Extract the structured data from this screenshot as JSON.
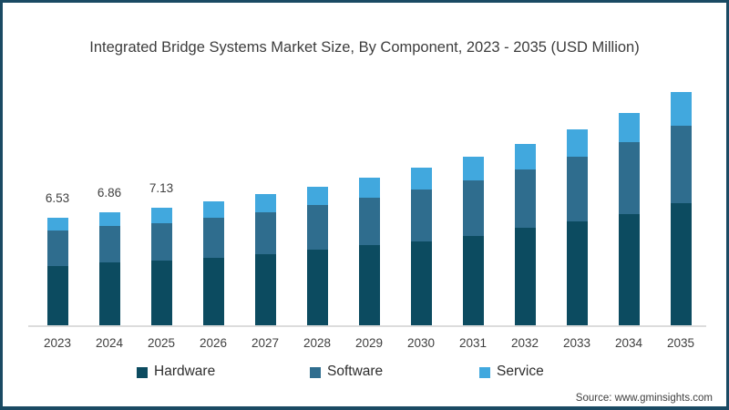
{
  "title": "Integrated Bridge Systems Market Size, By Component, 2023 - 2035 (USD Million)",
  "source": "Source: www.gminsights.com",
  "frame_border_color": "#1a4a63",
  "chart_data": {
    "type": "bar",
    "stacked": true,
    "title": "Integrated Bridge Systems Market Size, By Component, 2023 - 2035 (USD Million)",
    "xlabel": "",
    "ylabel": "USD Million",
    "ylim": [
      0,
      15
    ],
    "grid": false,
    "legend_position": "bottom",
    "axis_line_color": "#dcdcdc",
    "categories": [
      "2023",
      "2024",
      "2025",
      "2026",
      "2027",
      "2028",
      "2029",
      "2030",
      "2031",
      "2032",
      "2033",
      "2034",
      "2035"
    ],
    "series": [
      {
        "name": "Hardware",
        "color": "#0c4b60",
        "values": [
          3.64,
          3.85,
          3.96,
          4.13,
          4.35,
          4.59,
          4.87,
          5.09,
          5.45,
          5.93,
          6.29,
          6.73,
          7.42
        ]
      },
      {
        "name": "Software",
        "color": "#2f6d8e",
        "values": [
          2.14,
          2.16,
          2.24,
          2.41,
          2.52,
          2.7,
          2.87,
          3.16,
          3.31,
          3.51,
          3.91,
          4.33,
          4.66
        ]
      },
      {
        "name": "Service",
        "color": "#41a8de",
        "values": [
          0.75,
          0.85,
          0.93,
          0.95,
          1.08,
          1.11,
          1.22,
          1.28,
          1.46,
          1.52,
          1.65,
          1.79,
          2.01
        ]
      }
    ],
    "totals": [
      6.53,
      6.86,
      7.13,
      7.49,
      7.95,
      8.4,
      8.96,
      9.53,
      10.22,
      10.96,
      11.85,
      12.85,
      14.09
    ],
    "bar_labels": [
      "6.53",
      "6.86",
      "7.13",
      "",
      "",
      "",
      "",
      "",
      "",
      "",
      "",
      "",
      ""
    ]
  }
}
